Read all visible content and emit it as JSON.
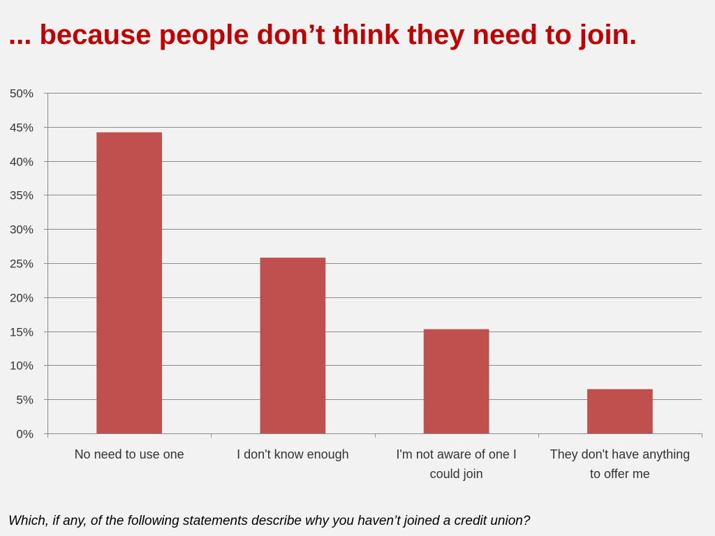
{
  "slide": {
    "title": "... because people don’t think they need to join.",
    "caption": "Which, if any, of the following statements describe why you haven’t joined a credit union?"
  },
  "chart_data": {
    "type": "bar",
    "title": "",
    "xlabel": "",
    "ylabel": "",
    "categories": [
      [
        "No need to use one"
      ],
      [
        "I don't know enough"
      ],
      [
        "I'm not aware of one I",
        "could join"
      ],
      [
        "They don't have anything",
        "to offer me"
      ]
    ],
    "values": [
      44.2,
      25.8,
      15.3,
      6.5
    ],
    "ylim": [
      0,
      50
    ],
    "yticks": [
      0,
      5,
      10,
      15,
      20,
      25,
      30,
      35,
      40,
      45,
      50
    ],
    "tick_format": "percent",
    "grid": true,
    "legend": "none",
    "bar_color": "#c0504d",
    "grid_color": "#8c8c8c"
  }
}
